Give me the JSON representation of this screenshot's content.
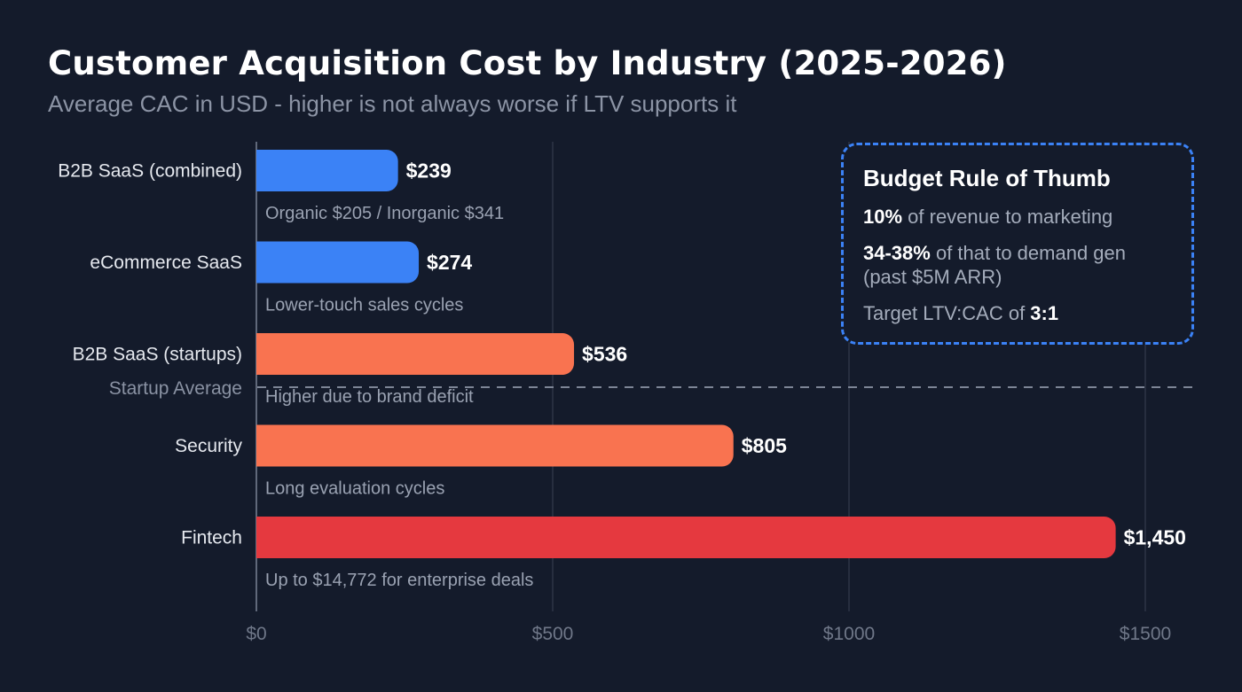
{
  "title": "Customer Acquisition Cost by Industry (2025-2026)",
  "subtitle": "Average CAC in USD - higher is not always worse if LTV supports it",
  "chart_data": {
    "type": "bar",
    "orientation": "horizontal",
    "categories": [
      "B2B SaaS (combined)",
      "eCommerce SaaS",
      "B2B SaaS (startups)",
      "Security",
      "Fintech"
    ],
    "values": [
      239,
      274,
      536,
      805,
      1450
    ],
    "value_labels": [
      "$239",
      "$274",
      "$536",
      "$805",
      "$1,450"
    ],
    "notes": [
      "Organic $205 / Inorganic $341",
      "Lower-touch sales cycles",
      "Higher due to brand deficit",
      "Long evaluation cycles",
      "Up to $14,772 for enterprise deals"
    ],
    "colors": [
      "#3b82f6",
      "#3b82f6",
      "#f97350",
      "#f97350",
      "#e5393f"
    ],
    "xlim": [
      0,
      1500
    ],
    "ticks": [
      0,
      500,
      1000,
      1500
    ],
    "tick_labels": [
      "$0",
      "$500",
      "$1000",
      "$1500"
    ],
    "grid": true,
    "reference_line": {
      "label": "Startup Average",
      "position": "between B2B SaaS (startups) and Security"
    }
  },
  "callout": {
    "title": "Budget Rule of Thumb",
    "line1_bold": "10%",
    "line1_text": " of revenue to marketing",
    "line2_bold": "34-38%",
    "line2_text": " of that to demand gen (past $5M ARR)",
    "line3_text": "Target LTV:CAC of ",
    "line3_bold": "3:1"
  }
}
